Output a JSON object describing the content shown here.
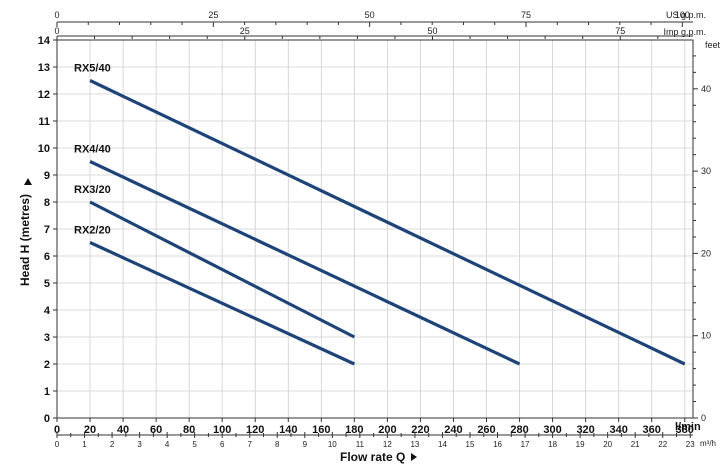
{
  "chart_data": {
    "type": "line",
    "xlabel": "Flow rate Q",
    "ylabel": "Head H (metres)",
    "x_unit": "l/min",
    "x_unit_secondary": "m³/h",
    "y_unit_secondary": "feet",
    "top_unit_us": "US g.p.m.",
    "top_unit_imp": "Imp g.p.m.",
    "xlim": [
      0,
      385
    ],
    "ylim": [
      0,
      14
    ],
    "grid": true,
    "x_ticks": [
      "0",
      "20",
      "40",
      "60",
      "80",
      "100",
      "120",
      "140",
      "160",
      "180",
      "200",
      "220",
      "240",
      "260",
      "280",
      "300",
      "320",
      "340",
      "360",
      "380"
    ],
    "x_ticks_m3h": [
      "0",
      "1",
      "2",
      "3",
      "4",
      "5",
      "6",
      "7",
      "8",
      "9",
      "10",
      "11",
      "12",
      "13",
      "14",
      "15",
      "16",
      "17",
      "18",
      "19",
      "20",
      "21",
      "22",
      "23"
    ],
    "y_ticks": [
      "0",
      "1",
      "2",
      "3",
      "4",
      "5",
      "6",
      "7",
      "8",
      "9",
      "10",
      "11",
      "12",
      "13",
      "14"
    ],
    "y_ticks_feet": [
      "0",
      "10",
      "20",
      "30",
      "40"
    ],
    "top_ticks_us": [
      "0",
      "25",
      "50",
      "75",
      "100"
    ],
    "top_ticks_imp": [
      "0",
      "25",
      "50",
      "75"
    ],
    "series": [
      {
        "name": "RX5/40",
        "x": [
          20,
          380
        ],
        "y": [
          12.5,
          2.0
        ]
      },
      {
        "name": "RX4/40",
        "x": [
          20,
          280
        ],
        "y": [
          9.5,
          2.0
        ]
      },
      {
        "name": "RX3/20",
        "x": [
          20,
          180
        ],
        "y": [
          8.0,
          3.0
        ]
      },
      {
        "name": "RX2/20",
        "x": [
          20,
          180
        ],
        "y": [
          6.5,
          2.0
        ]
      }
    ],
    "line_color": "#1d4378"
  }
}
